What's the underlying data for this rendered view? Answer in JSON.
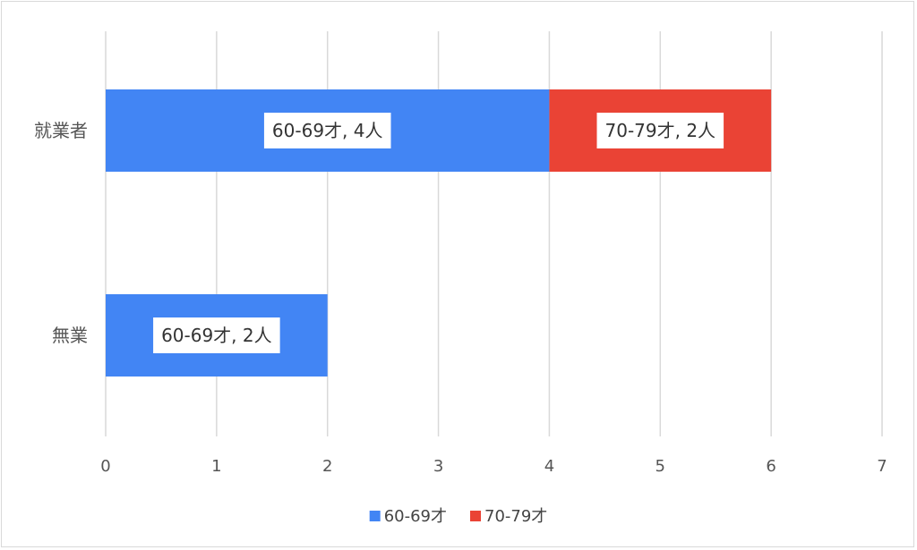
{
  "chart_data": {
    "type": "bar",
    "orientation": "horizontal",
    "stacked": true,
    "categories": [
      "就業者",
      "無業"
    ],
    "series": [
      {
        "name": "60-69才",
        "values": [
          4,
          2
        ],
        "color": "#4285f4",
        "labels": [
          "60-69才, 4人",
          "60-69才, 2人"
        ]
      },
      {
        "name": "70-79才",
        "values": [
          2,
          0
        ],
        "color": "#ea4335",
        "labels": [
          "70-79才, 2人",
          ""
        ]
      }
    ],
    "xlim": [
      0,
      7
    ],
    "xticks": [
      "0",
      "1",
      "2",
      "3",
      "4",
      "5",
      "6",
      "7"
    ],
    "grid": true,
    "legend_position": "bottom"
  }
}
